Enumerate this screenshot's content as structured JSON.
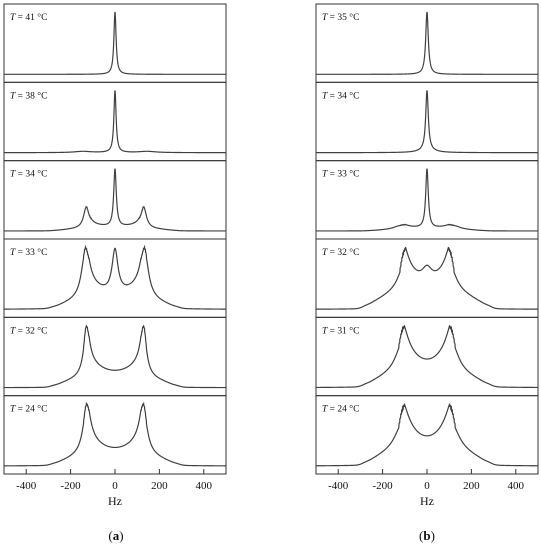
{
  "chart_data": [
    {
      "type": "line",
      "panel_label": "(a)",
      "xlabel": "Hz",
      "x_ticks": [
        -400,
        -200,
        0,
        200,
        400
      ],
      "xlim": [
        -500,
        500
      ],
      "grid": false,
      "color": "#404040",
      "stack": [
        {
          "name": "T = 41 °C",
          "label_var": "T",
          "label_rest": " = 41 °C",
          "peaks": [
            {
              "center": 0,
              "width": 6,
              "height": 1.0
            }
          ],
          "baseline": 0.0
        },
        {
          "name": "T = 38 °C",
          "label_var": "T",
          "label_rest": " = 38 °C",
          "peaks": [
            {
              "center": 0,
              "width": 6,
              "height": 1.0
            },
            {
              "center": -145,
              "width": 45,
              "height": 0.02
            },
            {
              "center": 145,
              "width": 45,
              "height": 0.02
            }
          ],
          "baseline": 0.0
        },
        {
          "name": "T = 34 °C",
          "label_var": "T",
          "label_rest": " = 34 °C",
          "peaks": [
            {
              "center": 0,
              "width": 7,
              "height": 0.85
            },
            {
              "center": -130,
              "width": 14,
              "height": 0.3
            },
            {
              "center": 130,
              "width": 14,
              "height": 0.3
            }
          ],
          "pake": {
            "x0": 120,
            "x1": 255,
            "height": 0.11
          },
          "baseline": 0.0
        },
        {
          "name": "T = 33 °C",
          "label_var": "T",
          "label_rest": " = 33 °C",
          "peaks": [
            {
              "center": 0,
              "width": 16,
              "height": 0.45
            },
            {
              "center": -135,
              "width": 20,
              "height": 0.45
            },
            {
              "center": 135,
              "width": 20,
              "height": 0.45
            }
          ],
          "pake": {
            "x0": 130,
            "x1": 265,
            "height": 0.3
          },
          "baseline": 0.0
        },
        {
          "name": "T = 32 °C",
          "label_var": "T",
          "label_rest": " = 32 °C",
          "peaks": [
            {
              "center": -130,
              "width": 16,
              "height": 0.45
            },
            {
              "center": 130,
              "width": 16,
              "height": 0.45
            }
          ],
          "pake": {
            "x0": 130,
            "x1": 265,
            "height": 0.32
          },
          "baseline": 0.0
        },
        {
          "name": "T = 24 °C",
          "label_var": "T",
          "label_rest": " = 24 °C",
          "peaks": [
            {
              "center": -130,
              "width": 20,
              "height": 0.4
            },
            {
              "center": 130,
              "width": 20,
              "height": 0.4
            }
          ],
          "pake": {
            "x0": 130,
            "x1": 265,
            "height": 0.3
          },
          "baseline": 0.0
        }
      ]
    },
    {
      "type": "line",
      "panel_label": "(b)",
      "xlabel": "Hz",
      "x_ticks": [
        -400,
        -200,
        0,
        200,
        400
      ],
      "xlim": [
        -500,
        500
      ],
      "grid": false,
      "color": "#404040",
      "stack": [
        {
          "name": "T = 35 °C",
          "label_var": "T",
          "label_rest": " = 35 °C",
          "peaks": [
            {
              "center": 0,
              "width": 7,
              "height": 1.0
            }
          ],
          "baseline": 0.0
        },
        {
          "name": "T = 34 °C",
          "label_var": "T",
          "label_rest": " = 34 °C",
          "peaks": [
            {
              "center": 0,
              "width": 7,
              "height": 1.0
            },
            {
              "center": 0,
              "width": 40,
              "height": 0.04
            }
          ],
          "baseline": 0.0
        },
        {
          "name": "T = 33 °C",
          "label_var": "T",
          "label_rest": " = 33 °C",
          "peaks": [
            {
              "center": 0,
              "width": 7,
              "height": 0.95
            },
            {
              "center": -125,
              "width": 30,
              "height": 0.05
            },
            {
              "center": 125,
              "width": 30,
              "height": 0.05
            }
          ],
          "pake": {
            "x0": 110,
            "x1": 240,
            "height": 0.08
          },
          "baseline": 0.0
        },
        {
          "name": "T = 32 °C",
          "label_var": "T",
          "label_rest": " = 32 °C",
          "peaks": [
            {
              "center": 0,
              "width": 28,
              "height": 0.15
            },
            {
              "center": -110,
              "width": 28,
              "height": 0.2
            },
            {
              "center": 110,
              "width": 28,
              "height": 0.2
            }
          ],
          "pake": {
            "x0": 110,
            "x1": 265,
            "height": 0.55
          },
          "baseline": 0.0
        },
        {
          "name": "T = 31 °C",
          "label_var": "T",
          "label_rest": " = 31 °C",
          "peaks": [
            {
              "center": -115,
              "width": 32,
              "height": 0.25
            },
            {
              "center": 115,
              "width": 32,
              "height": 0.25
            }
          ],
          "pake": {
            "x0": 115,
            "x1": 265,
            "height": 0.48
          },
          "baseline": 0.0
        },
        {
          "name": "T = 24 °C",
          "label_var": "T",
          "label_rest": " = 24 °C",
          "peaks": [
            {
              "center": -115,
              "width": 35,
              "height": 0.17
            },
            {
              "center": 115,
              "width": 35,
              "height": 0.17
            }
          ],
          "pake": {
            "x0": 115,
            "x1": 265,
            "height": 0.4
          },
          "baseline": 0.0
        }
      ]
    }
  ]
}
